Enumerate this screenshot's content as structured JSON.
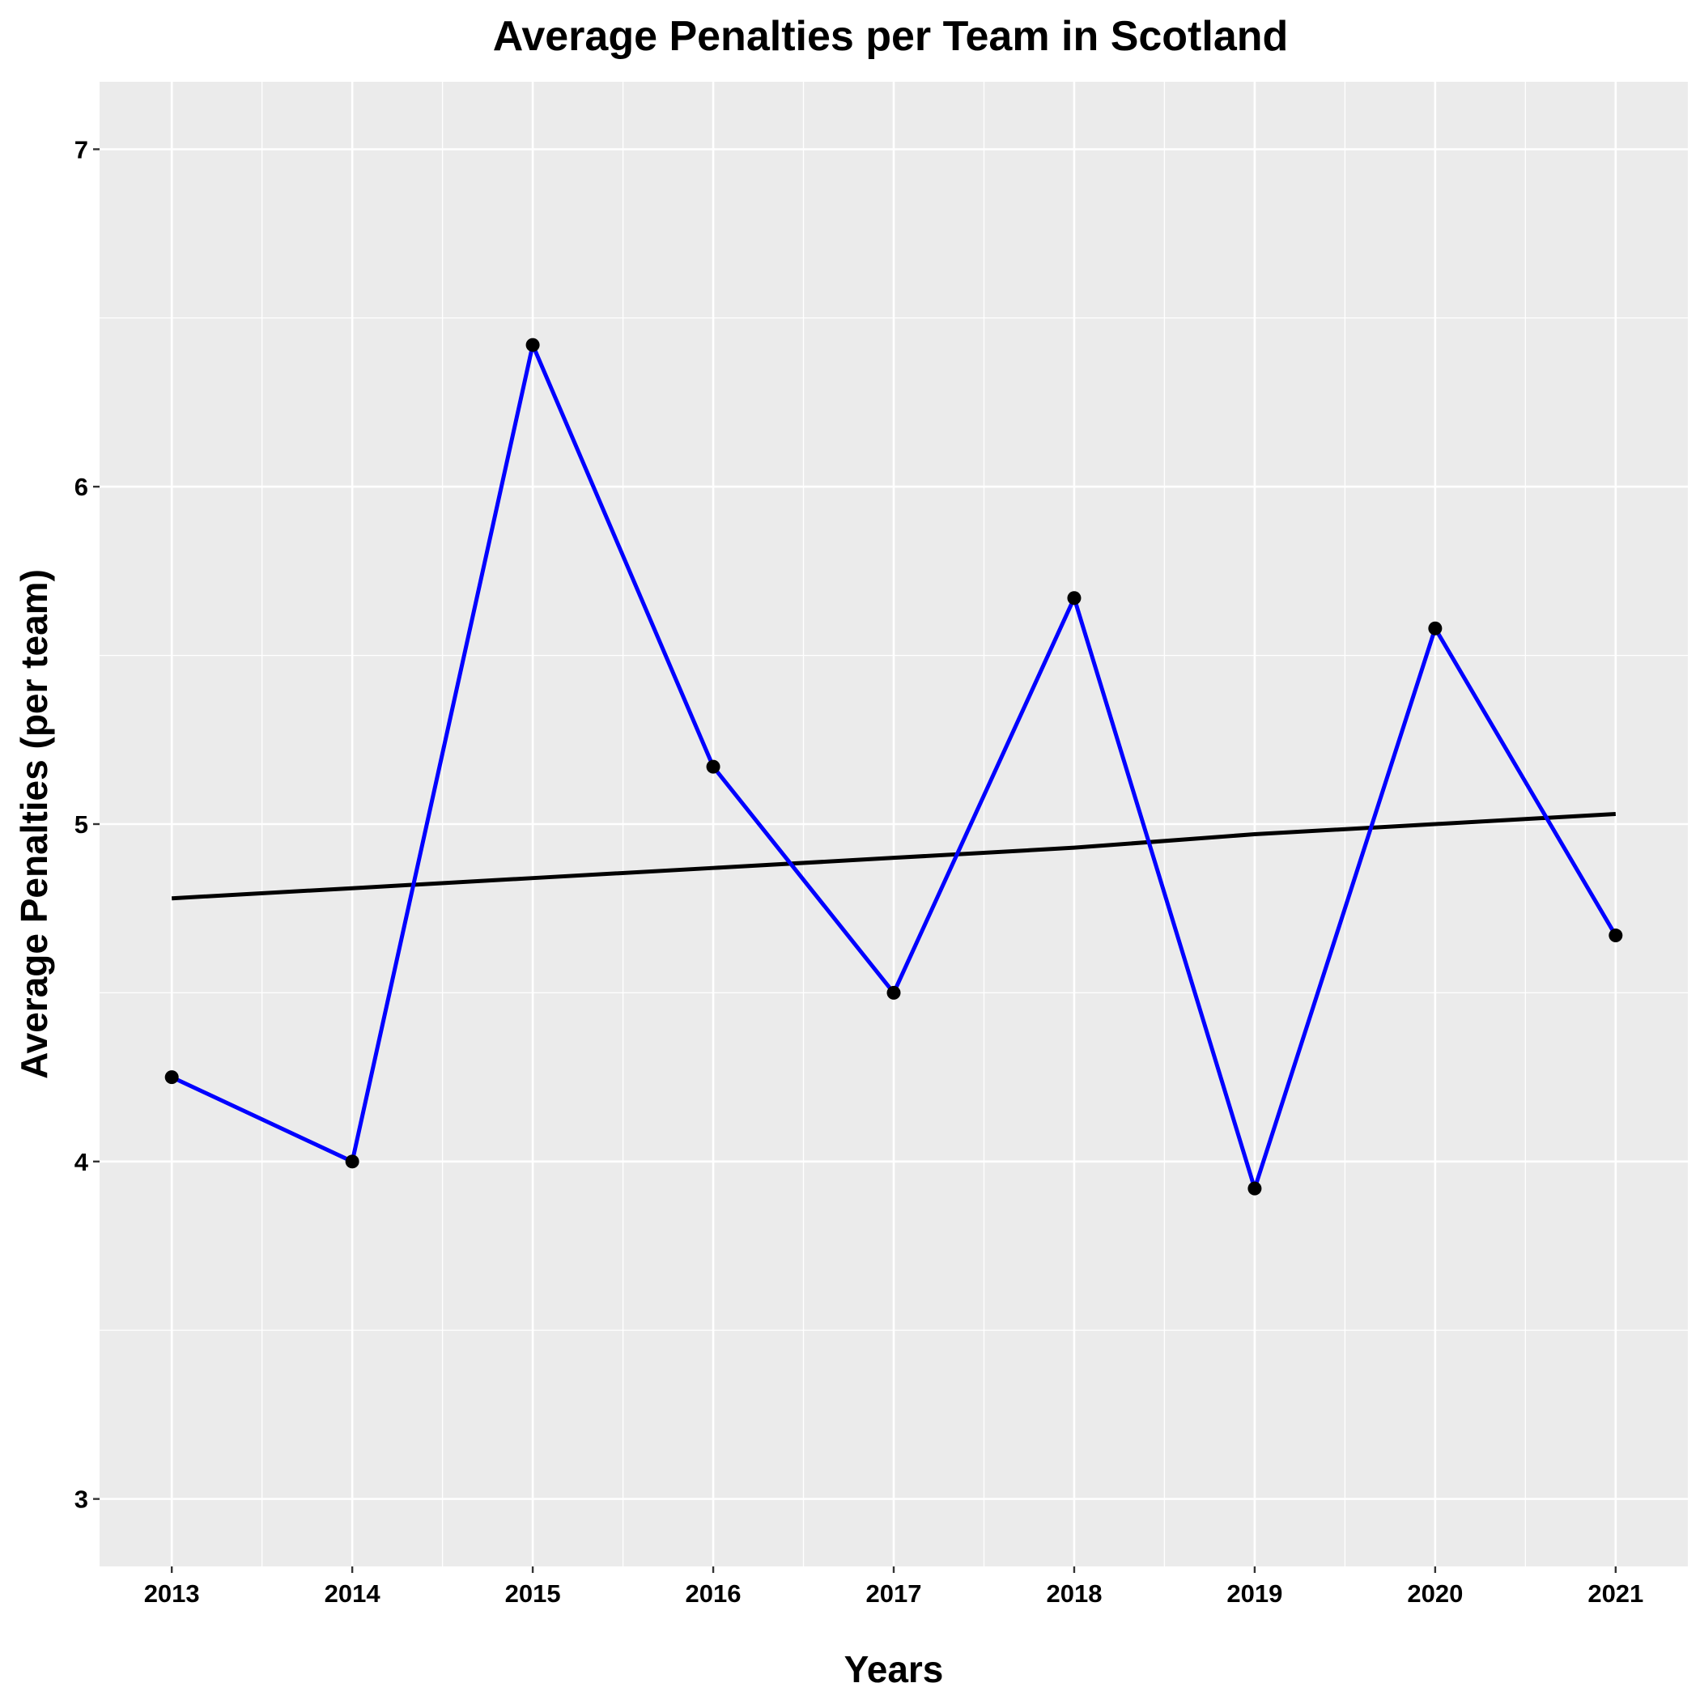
{
  "chart_data": {
    "type": "line",
    "title": "Average Penalties per Team in Scotland",
    "xlabel": "Years",
    "ylabel": "Average Penalties (per team)",
    "x": [
      2013,
      2014,
      2015,
      2016,
      2017,
      2018,
      2019,
      2020,
      2021
    ],
    "xticks": [
      "2013",
      "2014",
      "2015",
      "2016",
      "2017",
      "2018",
      "2019",
      "2020",
      "2021"
    ],
    "yticks": [
      "3",
      "4",
      "5",
      "6",
      "7"
    ],
    "ylim": [
      2.8,
      7.2
    ],
    "xlim": [
      2012.6,
      2021.4
    ],
    "grid": true,
    "series": [
      {
        "values": [
          4.25,
          4.0,
          6.42,
          5.17,
          4.5,
          5.67,
          3.92,
          5.58,
          4.67
        ],
        "color": "#0000ff",
        "markers": true
      },
      {
        "values": [
          4.78,
          4.81,
          4.84,
          4.87,
          4.9,
          4.93,
          4.97,
          5.0,
          5.03
        ],
        "color": "#000000",
        "markers": false
      }
    ]
  },
  "colors": {
    "panel_background": "#ebebeb",
    "grid": "#ffffff",
    "series_line": "#0000ff",
    "trend_line": "#000000",
    "marker": "#000000"
  }
}
